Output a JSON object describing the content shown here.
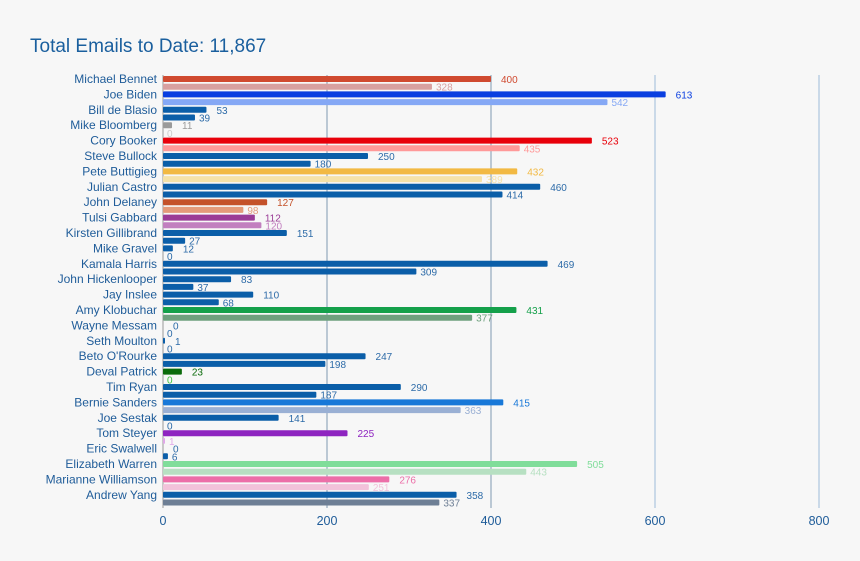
{
  "chart_data": {
    "type": "bar",
    "orientation": "horizontal",
    "title": "Total Emails to Date: 11,867",
    "xlabel": "",
    "ylabel": "",
    "xlim": [
      0,
      800
    ],
    "x_ticks": [
      "0",
      "200",
      "400",
      "600",
      "800"
    ],
    "grid": "vertical lines",
    "categories": [
      "Michael Bennet",
      "Joe Biden",
      "Bill de Blasio",
      "Mike Bloomberg",
      "Cory Booker",
      "Steve Bullock",
      "Pete Buttigieg",
      "Julian Castro",
      "John Delaney",
      "Tulsi Gabbard",
      "Kirsten Gillibrand",
      "Mike Gravel",
      "Kamala Harris",
      "John Hickenlooper",
      "Jay Inslee",
      "Amy Klobuchar",
      "Wayne Messam",
      "Seth Moulton",
      "Beto O'Rourke",
      "Deval Patrick",
      "Tim Ryan",
      "Bernie Sanders",
      "Joe Sestak",
      "Tom Steyer",
      "Eric Swalwell",
      "Elizabeth Warren",
      "Marianne Williamson",
      "Andrew Yang"
    ],
    "series": [
      {
        "values": [
          400,
          613,
          53,
          11,
          523,
          250,
          432,
          460,
          127,
          112,
          151,
          12,
          469,
          83,
          110,
          431,
          0,
          1,
          247,
          23,
          290,
          415,
          141,
          225,
          0,
          505,
          276,
          358
        ],
        "colors": [
          "#d04a30",
          "#0a3fe0",
          "#0b5ea8",
          "#9a9a9a",
          "#e8000a",
          "#0b5ea8",
          "#f2b943",
          "#0b5ea8",
          "#c4522a",
          "#9a3b96",
          "#0b5ea8",
          "#0b5ea8",
          "#0b5ea8",
          "#0b5ea8",
          "#0b5ea8",
          "#14a04a",
          "#0b5ea8",
          "#0b5ea8",
          "#0b5ea8",
          "#0b6b0b",
          "#0b5ea8",
          "#1878d8",
          "#0b5ea8",
          "#8e24c0",
          "#0b5ea8",
          "#80dd9a",
          "#ec6fa8",
          "#0b5ea8"
        ]
      },
      {
        "values": [
          328,
          542,
          39,
          0,
          435,
          180,
          389,
          414,
          98,
          120,
          27,
          0,
          309,
          37,
          68,
          377,
          0,
          0,
          198,
          0,
          187,
          363,
          0,
          1,
          6,
          443,
          251,
          337
        ],
        "colors": [
          "#d8a0a0",
          "#85a8f5",
          "#0b5ea8",
          "#cccccc",
          "#ff9999",
          "#0b5ea8",
          "#f5e2a8",
          "#0b5ea8",
          "#e39a7a",
          "#c27fbf",
          "#0b5ea8",
          "#0b5ea8",
          "#0b5ea8",
          "#0b5ea8",
          "#0b5ea8",
          "#6ea07e",
          "#0b5ea8",
          "#0b5ea8",
          "#0b5ea8",
          "#3ec23e",
          "#0b5ea8",
          "#9ab0d4",
          "#0b5ea8",
          "#e0a8e8",
          "#0b5ea8",
          "#b7e0c2",
          "#f2c2da",
          "#6e7f95"
        ]
      }
    ]
  }
}
